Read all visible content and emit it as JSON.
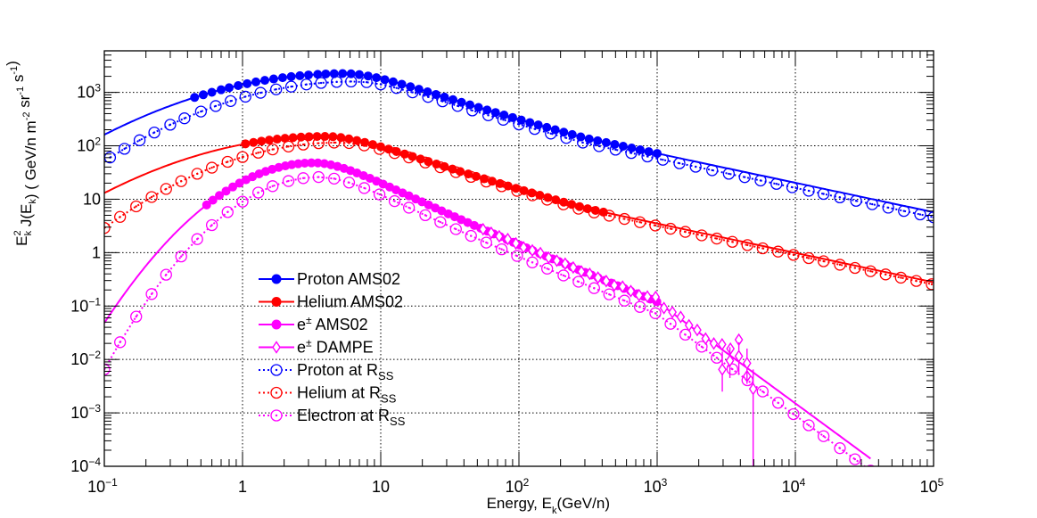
{
  "chart_data": {
    "type": "scatter",
    "title": "",
    "xlabel": "Energy, E_k(GeV/n)",
    "ylabel": "E_k^2 J(E_k) ( GeV/n m^-2 sr^-1 s^-1 )",
    "xscale": "log",
    "yscale": "log",
    "xlim": [
      0.1,
      100000
    ],
    "ylim": [
      0.0001,
      6000
    ],
    "grid": true,
    "x_tick_labels": [
      {
        "base": "10",
        "exp": "−1",
        "value": 0.1
      },
      {
        "base": "1",
        "exp": "",
        "value": 1
      },
      {
        "base": "10",
        "exp": "",
        "value": 10
      },
      {
        "base": "10",
        "exp": "2",
        "value": 100
      },
      {
        "base": "10",
        "exp": "3",
        "value": 1000
      },
      {
        "base": "10",
        "exp": "4",
        "value": 10000
      },
      {
        "base": "10",
        "exp": "5",
        "value": 100000
      }
    ],
    "y_tick_labels": [
      {
        "base": "10",
        "exp": "−4",
        "value": 0.0001
      },
      {
        "base": "10",
        "exp": "−3",
        "value": 0.001
      },
      {
        "base": "10",
        "exp": "−2",
        "value": 0.01
      },
      {
        "base": "10",
        "exp": "−1",
        "value": 0.1
      },
      {
        "base": "1",
        "exp": "",
        "value": 1
      },
      {
        "base": "10",
        "exp": "",
        "value": 10
      },
      {
        "base": "10",
        "exp": "2",
        "value": 100
      },
      {
        "base": "10",
        "exp": "3",
        "value": 1000
      }
    ],
    "model_series": [
      {
        "name": "Proton",
        "color": "#0000ff",
        "peak": 2250,
        "xpeak": 5.5,
        "sigma": 1.15,
        "index": -0.7,
        "xbreak": 300,
        "index2": -0.55,
        "xmin": 0.1
      },
      {
        "name": "Helium",
        "color": "#ff0000",
        "peak": 150,
        "xpeak": 4.0,
        "sigma": 1.1,
        "index": -0.72,
        "xbreak": 300,
        "index2": -0.55,
        "xmin": 0.1
      },
      {
        "name": "Electron",
        "color": "#ff00ff",
        "peak": 48,
        "xpeak": 3.3,
        "sigma": 0.62,
        "index": -1.05,
        "xbreak": 1000,
        "index2": -1.9,
        "xmin": 0.1,
        "xmax": 35000
      }
    ],
    "rss_series": [
      {
        "name": "Proton at R_SS",
        "color": "#0000ff",
        "peak": 1600,
        "xpeak": 6.5,
        "sigma": 1.05,
        "index": -0.7,
        "xbreak": 300,
        "index2": -0.55,
        "x": [
          0.11,
          0.14,
          0.18,
          0.23,
          0.3,
          0.38,
          0.5,
          0.64,
          0.82,
          1.05,
          1.35,
          1.75,
          2.25,
          2.9,
          3.7,
          4.8,
          6.1,
          7.9,
          10,
          13,
          17,
          22,
          28,
          36,
          46,
          60,
          77,
          100,
          130,
          170,
          220,
          290,
          380,
          500,
          650,
          850,
          1100,
          1450,
          1900,
          2500,
          3300,
          4300,
          5600,
          7300,
          9500,
          12500,
          16000,
          21000,
          27500,
          36000,
          47000,
          61000,
          80000,
          100000
        ]
      },
      {
        "name": "Helium at R_SS",
        "color": "#ff0000",
        "peak": 115,
        "xpeak": 5.0,
        "sigma": 0.95,
        "index": -0.72,
        "xbreak": 300,
        "index2": -0.55,
        "x": [
          0.1,
          0.13,
          0.17,
          0.22,
          0.28,
          0.36,
          0.47,
          0.6,
          0.78,
          1.0,
          1.3,
          1.65,
          2.15,
          2.75,
          3.55,
          4.6,
          5.9,
          7.6,
          9.8,
          12.6,
          16,
          21,
          27,
          35,
          45,
          58,
          75,
          97,
          125,
          160,
          210,
          270,
          350,
          450,
          580,
          750,
          970,
          1250,
          1600,
          2100,
          2700,
          3500,
          4500,
          5800,
          7500,
          9700,
          12500,
          16000,
          21000,
          27000,
          35000,
          45000,
          58000,
          75000,
          97000
        ]
      },
      {
        "name": "Electron at R_SS",
        "color": "#ff00ff",
        "peak": 26,
        "xpeak": 3.6,
        "sigma": 0.58,
        "index": -1.05,
        "xbreak": 1000,
        "index2": -1.9,
        "x": [
          0.1,
          0.13,
          0.17,
          0.22,
          0.28,
          0.36,
          0.47,
          0.6,
          0.78,
          1.0,
          1.3,
          1.65,
          2.15,
          2.75,
          3.55,
          4.6,
          5.9,
          7.6,
          9.8,
          12.6,
          16,
          21,
          27,
          35,
          45,
          58,
          75,
          97,
          125,
          160,
          210,
          270,
          350,
          450,
          580,
          750,
          970,
          1250,
          1600,
          2100,
          2700,
          3500,
          4500,
          5800,
          7500,
          9700,
          12500,
          16000,
          21000,
          27000,
          35000
        ]
      }
    ],
    "ams_series": [
      {
        "name": "Proton AMS02",
        "model": 0,
        "x": [
          0.45,
          0.52,
          0.6,
          0.7,
          0.8,
          0.93,
          1.08,
          1.25,
          1.45,
          1.68,
          1.95,
          2.25,
          2.6,
          3.0,
          3.5,
          4.0,
          4.6,
          5.3,
          6.1,
          7.0,
          8.1,
          9.3,
          10.7,
          12.3,
          14.2,
          16.4,
          18.9,
          21.8,
          25.1,
          28.9,
          33.3,
          38.4,
          44.2,
          51,
          58.8,
          67.7,
          78,
          90,
          104,
          120,
          138,
          159,
          183,
          211,
          243,
          280,
          322,
          371,
          428,
          493,
          568,
          654,
          754,
          869,
          1000
        ]
      },
      {
        "name": "Helium AMS02",
        "model": 1,
        "x": [
          1.05,
          1.2,
          1.37,
          1.56,
          1.78,
          2.03,
          2.32,
          2.65,
          3.03,
          3.46,
          3.95,
          4.51,
          5.15,
          5.88,
          6.71,
          7.66,
          8.75,
          10,
          11.4,
          13,
          14.9,
          17,
          19.4,
          22.1,
          25.3,
          28.9,
          33,
          37.6,
          43,
          49,
          56,
          64,
          73,
          83.4,
          95.2,
          108.7,
          124,
          141.6,
          161.7,
          184.6,
          210.8,
          240.6,
          274.7,
          313.6,
          358,
          408.8
        ]
      },
      {
        "name": "e± AMS02",
        "model": 2,
        "x": [
          0.55,
          0.61,
          0.68,
          0.76,
          0.85,
          0.95,
          1.06,
          1.18,
          1.32,
          1.47,
          1.64,
          1.83,
          2.04,
          2.27,
          2.53,
          2.82,
          3.15,
          3.51,
          3.91,
          4.36,
          4.86,
          5.42,
          6.04,
          6.73,
          7.5,
          8.36,
          9.32,
          10.4,
          11.6,
          12.9,
          14.4,
          16,
          17.9,
          19.9,
          22.2,
          24.8,
          27.6,
          30.8,
          34.3,
          38.2,
          42.6,
          47.5,
          52.9,
          59,
          65.8,
          73.3,
          81.7,
          91.1,
          101.5,
          113,
          126,
          141,
          157,
          175,
          195,
          217,
          242,
          270,
          301,
          335,
          374,
          417,
          465,
          518,
          577,
          644,
          718,
          800,
          892,
          995
        ]
      }
    ],
    "dampe_points": {
      "name": "e± DAMPE",
      "model": 2,
      "x": [
        55,
        63,
        72,
        83,
        95,
        108,
        125,
        143,
        164,
        188,
        216,
        247,
        283,
        325,
        373,
        428,
        490,
        562,
        645,
        740,
        850,
        975,
        1120,
        1290,
        1480,
        1700,
        1950,
        2240,
        2570,
        2950,
        3390,
        3900,
        4470
      ],
      "offsets": [
        1,
        1,
        1,
        1.04,
        1,
        0.97,
        1,
        1.03,
        0.98,
        1,
        1.02,
        1,
        0.97,
        1.02,
        1,
        1,
        0.96,
        1.05,
        1,
        0.97,
        1.06,
        1.2,
        0.95,
        1.04,
        1.1,
        1.0,
        1.06,
        0.95,
        1.0,
        1.25,
        1.35,
        2.6,
        0.7
      ]
    },
    "dampe_errors": [
      {
        "x": 2960,
        "y": 0.0065,
        "lo": 0.0025,
        "hi": 0.014
      },
      {
        "x": 3360,
        "y": 0.0095,
        "lo": 0.0045,
        "hi": 0.017
      },
      {
        "x": 3900,
        "y": 0.0115,
        "lo": 0.0055,
        "hi": 0.021
      },
      {
        "x": 4470,
        "y": 0.0085,
        "lo": 0.0035,
        "hi": 0.016
      },
      {
        "x": 4950,
        "y": 0.0028,
        "lo": 0.0001,
        "hi": 0.0065
      }
    ],
    "legend": [
      {
        "label": "Proton AMS02",
        "sup": "",
        "sub": "",
        "color": "#0000ff",
        "marker": "filled",
        "line": "solid"
      },
      {
        "label": "Helium AMS02",
        "sup": "",
        "sub": "",
        "color": "#ff0000",
        "marker": "filled",
        "line": "solid"
      },
      {
        "label": "e",
        "sup": "±",
        "sub": "",
        "suffix": " AMS02",
        "color": "#ff00ff",
        "marker": "filled",
        "line": "solid"
      },
      {
        "label": "e",
        "sup": "±",
        "sub": "",
        "suffix": " DAMPE",
        "color": "#ff00ff",
        "marker": "diamond",
        "line": "solid"
      },
      {
        "label": "Proton at R",
        "sup": "",
        "sub": "SS",
        "suffix": "",
        "color": "#0000ff",
        "marker": "open",
        "line": "dotted"
      },
      {
        "label": "Helium at R",
        "sup": "",
        "sub": "SS",
        "suffix": "",
        "color": "#ff0000",
        "marker": "open",
        "line": "dotted"
      },
      {
        "label": "Electron at R",
        "sup": "",
        "sub": "SS",
        "suffix": "",
        "color": "#ff00ff",
        "marker": "open",
        "line": "dotted"
      }
    ],
    "legend_position": "center-left"
  }
}
